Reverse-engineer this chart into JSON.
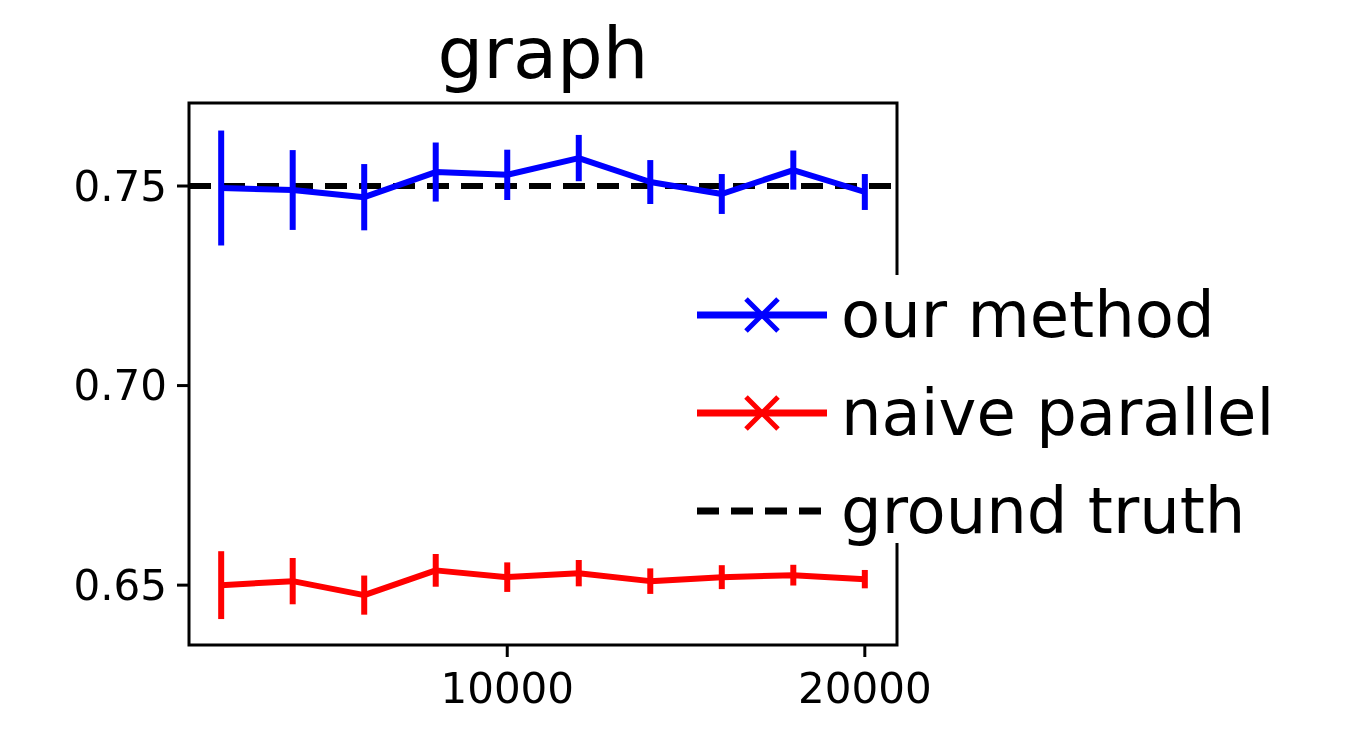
{
  "chart_data": {
    "type": "line",
    "title": "graph",
    "x": [
      2000,
      4000,
      6000,
      8000,
      10000,
      12000,
      14000,
      16000,
      18000,
      20000
    ],
    "series": [
      {
        "name": "our method",
        "color": "#0000ff",
        "values": [
          0.7495,
          0.749,
          0.7472,
          0.7535,
          0.7528,
          0.757,
          0.751,
          0.748,
          0.754,
          0.7485
        ],
        "errors": [
          0.0144,
          0.01,
          0.0083,
          0.0074,
          0.0063,
          0.0058,
          0.0055,
          0.005,
          0.0049,
          0.0045
        ]
      },
      {
        "name": "naive parallel",
        "color": "#ff0000",
        "values": [
          0.65,
          0.651,
          0.6475,
          0.6537,
          0.652,
          0.653,
          0.651,
          0.652,
          0.6525,
          0.6515
        ],
        "errors": [
          0.0085,
          0.0058,
          0.0049,
          0.0041,
          0.0037,
          0.0033,
          0.0032,
          0.003,
          0.0026,
          0.0023
        ]
      }
    ],
    "ref_lines": [
      {
        "axis": "y",
        "value": 0.75,
        "label": "ground truth",
        "color": "#000000",
        "line_style": "dashed"
      }
    ],
    "xlim": [
      1100,
      20900
    ],
    "xticks": [
      10000,
      20000
    ],
    "ylim": [
      0.635,
      0.7708
    ],
    "yticks": [
      {
        "value": 0.65,
        "label": "0.65"
      },
      {
        "value": 0.7,
        "label": "0.70"
      },
      {
        "value": 0.75,
        "label": "0.75"
      }
    ],
    "legend": "right",
    "grid": false
  }
}
